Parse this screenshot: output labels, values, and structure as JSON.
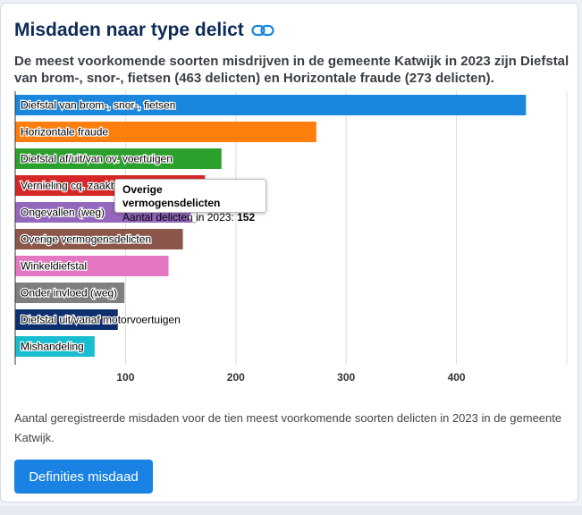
{
  "header": {
    "title": "Misdaden naar type delict",
    "subtitle": "De meest voorkomende soorten misdrijven in de gemeente Katwijk in 2023 zijn Diefstal van brom-, snor-, fietsen (463 delicten) en Horizontale fraude (273 delicten)."
  },
  "chart_data": {
    "type": "bar",
    "orientation": "horizontal",
    "categories": [
      "Diefstal van brom-, snor-, fietsen",
      "Horizontale fraude",
      "Diefstal af/uit/van ov. voertuigen",
      "Vernieling cq. zaakbeschadiging",
      "Ongevallen (weg)",
      "Overige vermogensdelicten",
      "Winkeldiefstal",
      "Onder invloed (weg)",
      "Diefstal uit/vanaf motorvoertuigen",
      "Mishandeling"
    ],
    "values": [
      463,
      273,
      187,
      172,
      163,
      152,
      139,
      99,
      93,
      72
    ],
    "colors": [
      "#1a86dc",
      "#ff7f0e",
      "#2ca02c",
      "#d62728",
      "#9467bd",
      "#8c564b",
      "#e377c2",
      "#7f7f7f",
      "#0e2f6e",
      "#17becf"
    ],
    "xlim": [
      0,
      500
    ],
    "xticks": [
      100,
      200,
      300,
      400
    ],
    "grid": true
  },
  "tooltip": {
    "title": "Overige vermogensdelicten",
    "label": "Aantal delicten in 2023: ",
    "value": "152"
  },
  "caption": "Aantal geregistreerde misdaden voor de tien meest voorkomende soorten delicten in 2023 in de gemeente Katwijk.",
  "button": {
    "label": "Definities misdaad"
  }
}
